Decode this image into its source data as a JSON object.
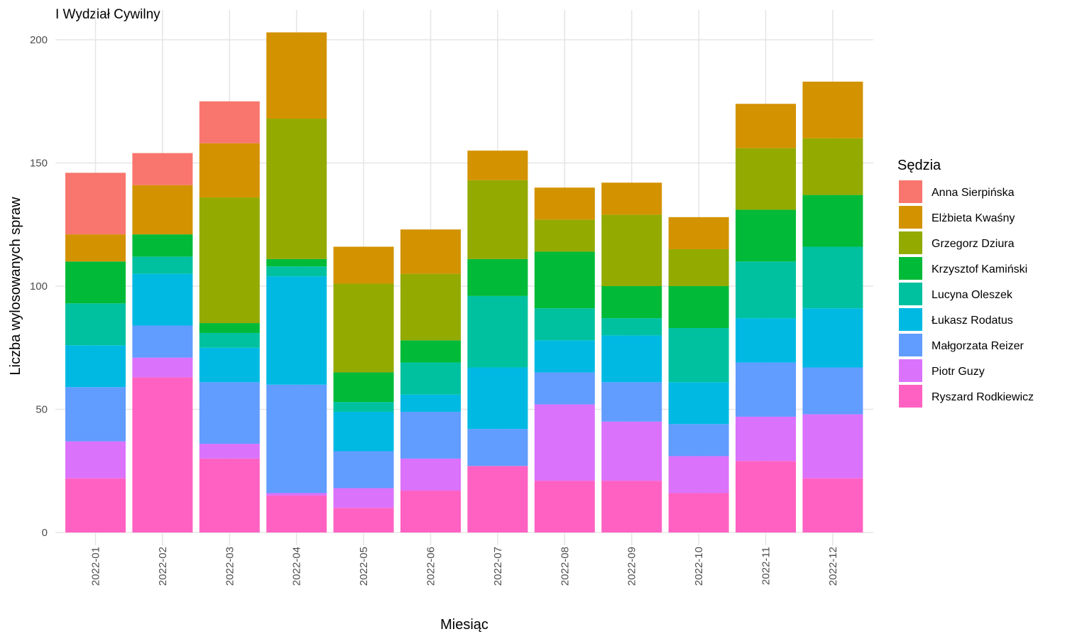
{
  "chart_data": {
    "type": "bar",
    "stacked": true,
    "title": "I Wydział Cywilny",
    "xlabel": "Miesiąc",
    "ylabel": "Liczba wylosowanych spraw",
    "ylim": [
      0,
      210
    ],
    "yticks": [
      0,
      50,
      100,
      150,
      200
    ],
    "grid": true,
    "legend_title": "Sędzia",
    "legend_position": "right",
    "categories": [
      "2022-01",
      "2022-02",
      "2022-03",
      "2022-04",
      "2022-05",
      "2022-06",
      "2022-07",
      "2022-08",
      "2022-09",
      "2022-10",
      "2022-11",
      "2022-12"
    ],
    "series": [
      {
        "name": "Anna Sierpińska",
        "color": "#F8766D",
        "values": [
          25,
          13,
          17,
          0,
          0,
          0,
          0,
          0,
          0,
          0,
          0,
          0
        ]
      },
      {
        "name": "Elżbieta Kwaśny",
        "color": "#D39200",
        "values": [
          11,
          20,
          22,
          35,
          15,
          18,
          12,
          13,
          13,
          13,
          18,
          23
        ]
      },
      {
        "name": "Grzegorz Dziura",
        "color": "#93AA00",
        "values": [
          0,
          0,
          51,
          57,
          36,
          27,
          32,
          13,
          29,
          15,
          25,
          23
        ]
      },
      {
        "name": "Krzysztof Kamiński",
        "color": "#00BA38",
        "values": [
          17,
          9,
          4,
          3,
          12,
          9,
          15,
          23,
          13,
          17,
          21,
          21
        ]
      },
      {
        "name": "Lucyna Oleszek",
        "color": "#00C19F",
        "values": [
          17,
          7,
          6,
          4,
          4,
          13,
          29,
          13,
          7,
          22,
          23,
          25
        ]
      },
      {
        "name": "Łukasz Rodatus",
        "color": "#00B9E3",
        "values": [
          17,
          21,
          14,
          44,
          16,
          7,
          25,
          13,
          19,
          17,
          18,
          24
        ]
      },
      {
        "name": "Małgorzata Reizer",
        "color": "#619CFF",
        "values": [
          22,
          13,
          25,
          44,
          15,
          19,
          15,
          13,
          16,
          13,
          22,
          19
        ]
      },
      {
        "name": "Piotr Guzy",
        "color": "#DB72FB",
        "values": [
          15,
          8,
          6,
          1,
          8,
          13,
          0,
          31,
          24,
          15,
          18,
          26
        ]
      },
      {
        "name": "Ryszard Rodkiewicz",
        "color": "#FF61C3",
        "values": [
          22,
          63,
          30,
          15,
          10,
          17,
          27,
          21,
          21,
          16,
          29,
          22
        ]
      }
    ]
  }
}
